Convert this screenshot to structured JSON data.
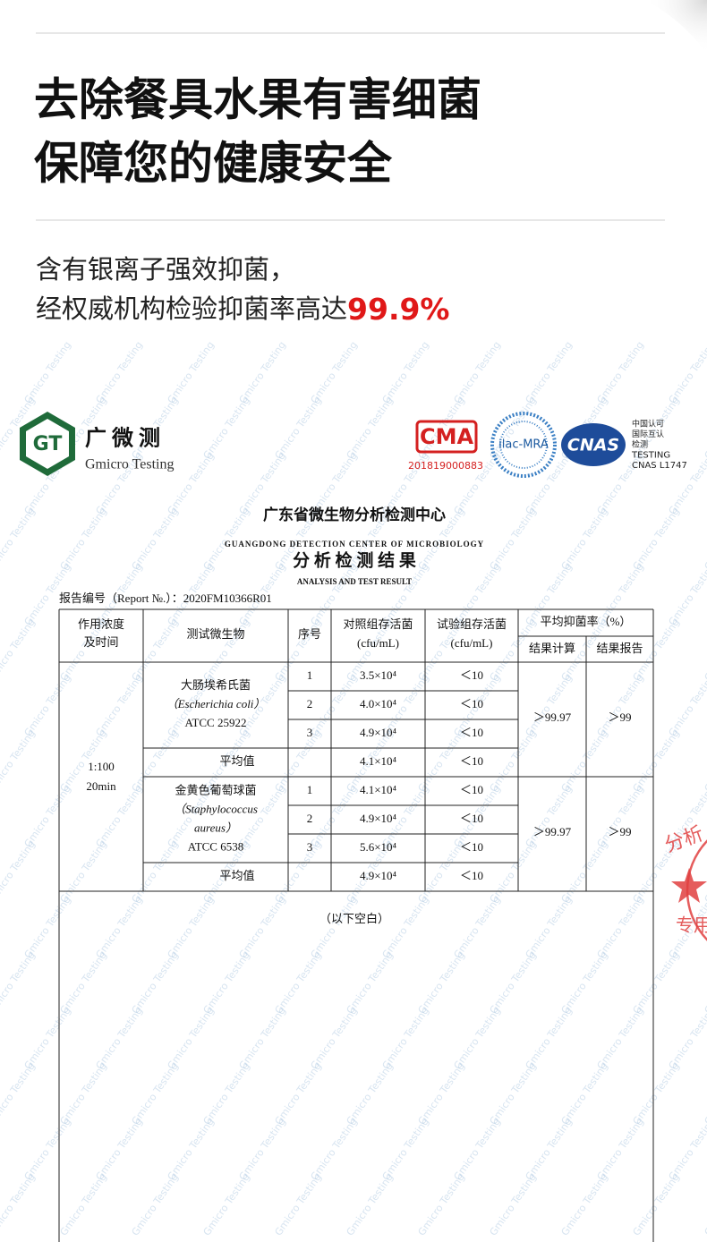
{
  "header": {
    "title_lines": [
      "去除餐具水果有害细菌",
      "保障您的健康安全"
    ],
    "subtitle_lines": [
      "含有银离子强效抑菌，",
      "经权威机构检验抑菌率高达"
    ],
    "highlight": "99.9%"
  },
  "document": {
    "watermark": "Gmicro Testing",
    "logo": {
      "mark": "GT",
      "name_cn": "广 微 测",
      "name_en": "Gmicro Testing"
    },
    "certifications": {
      "cma": "CMA",
      "cma_number": "201819000883",
      "ilac": "ilac-MRA",
      "cnas": "CNAS",
      "cnas_text": [
        "中国认可",
        "国际互认",
        "检测",
        "TESTING",
        "CNAS L1747"
      ]
    },
    "org_cn": "广东省微生物分析检测中心",
    "org_en": "GUANGDONG DETECTION CENTER OF MICROBIOLOGY",
    "report_title": "分 析 检 测 结 果",
    "report_title_en": "ANALYSIS AND TEST RESULT",
    "report_number": "报告编号（Report №.）：2020FM10366R01",
    "table": {
      "headers": {
        "concentration": [
          "作用浓度",
          "及时间"
        ],
        "organism": "测试微生物",
        "no": "序号",
        "control": [
          "对照组存活菌",
          "(cfu/mL)"
        ],
        "test": [
          "试验组存活菌",
          "(cfu/mL)"
        ],
        "rate": "平均抑菌率（%）",
        "calc": "结果计算",
        "report": "结果报告"
      },
      "concentration": [
        "1:100",
        "20min"
      ],
      "groups": [
        {
          "organism": [
            "大肠埃希氏菌",
            "（Escherichia coli）",
            "ATCC 25922"
          ],
          "rows": [
            {
              "no": "1",
              "control": "3.5×10⁴",
              "test": "＜10"
            },
            {
              "no": "2",
              "control": "4.0×10⁴",
              "test": "＜10"
            },
            {
              "no": "3",
              "control": "4.9×10⁴",
              "test": "＜10"
            }
          ],
          "average_label": "平均值",
          "average_control": "4.1×10⁴",
          "average_test": "＜10",
          "calc": "＞99.97",
          "report": "＞99"
        },
        {
          "organism": [
            "金黄色葡萄球菌",
            "（Staphylococcus",
            "aureus）",
            "ATCC 6538"
          ],
          "rows": [
            {
              "no": "1",
              "control": "4.1×10⁴",
              "test": "＜10"
            },
            {
              "no": "2",
              "control": "4.9×10⁴",
              "test": "＜10"
            },
            {
              "no": "3",
              "control": "5.6×10⁴",
              "test": "＜10"
            }
          ],
          "average_label": "平均值",
          "average_control": "4.9×10⁴",
          "average_test": "＜10",
          "calc": "＞99.97",
          "report": "＞99"
        }
      ],
      "footer": "（以下空白）"
    },
    "stamp": {
      "top": "分析",
      "bottom": "专用"
    }
  }
}
